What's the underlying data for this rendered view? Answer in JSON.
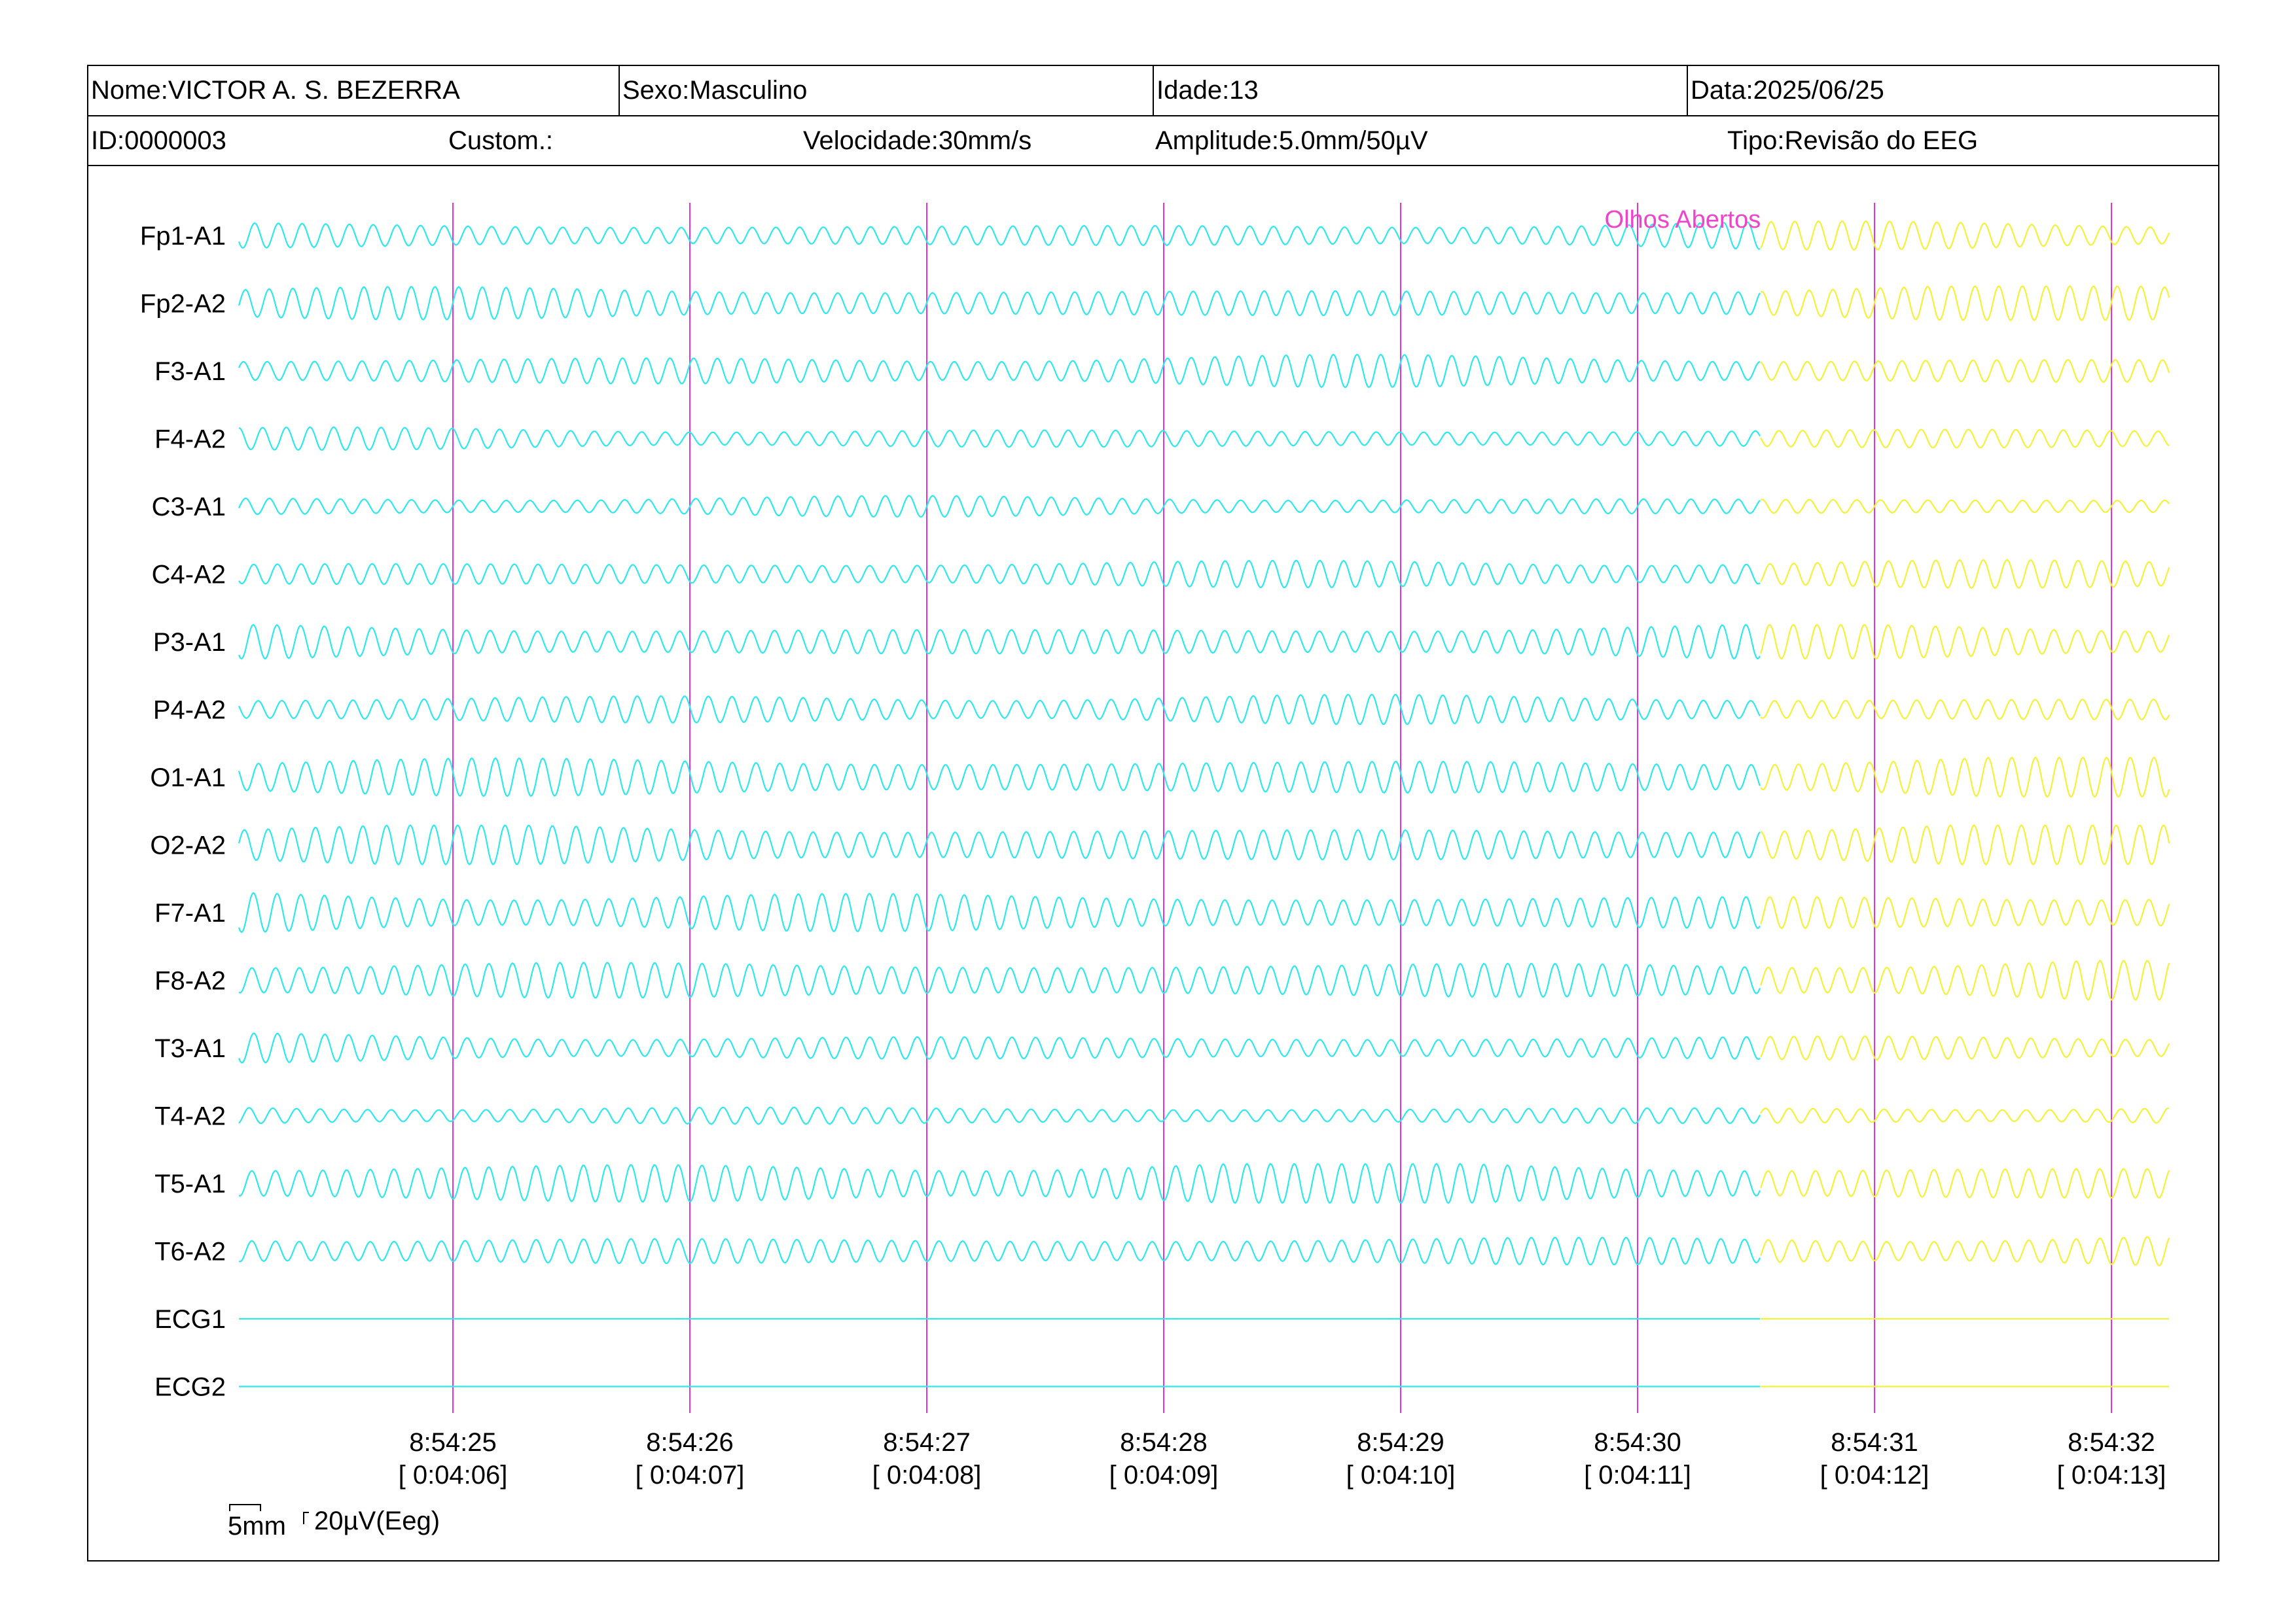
{
  "header": {
    "name": "Nome:VICTOR A. S. BEZERRA",
    "sex": "Sexo:Masculino",
    "age": "Idade:13",
    "date": "Data:2025/06/25",
    "id": "ID:0000003",
    "custom": "Custom.:",
    "speed": "Velocidade:30mm/s",
    "amplitude": "Amplitude:5.0mm/50µV",
    "type": "Tipo:Revisão do EEG"
  },
  "colors": {
    "trace_main": "#2ee8ee",
    "trace_recent": "#f2f23a",
    "markers": "#e033d8",
    "annotation": "#ee44cc"
  },
  "chart_data": {
    "type": "line",
    "channels": [
      "Fp1-A1",
      "Fp2-A2",
      "F3-A1",
      "F4-A2",
      "C3-A1",
      "C4-A2",
      "P3-A1",
      "P4-A2",
      "O1-A1",
      "O2-A2",
      "F7-A1",
      "F8-A2",
      "T3-A1",
      "T4-A2",
      "T5-A1",
      "T6-A2",
      "ECG1",
      "ECG2"
    ],
    "flat_channels": [
      "ECG1",
      "ECG2"
    ],
    "time_markers": [
      {
        "clock": "8:54:25",
        "elapsed": "[ 0:04:06]"
      },
      {
        "clock": "8:54:26",
        "elapsed": "[ 0:04:07]"
      },
      {
        "clock": "8:54:27",
        "elapsed": "[ 0:04:08]"
      },
      {
        "clock": "8:54:28",
        "elapsed": "[ 0:04:09]"
      },
      {
        "clock": "8:54:29",
        "elapsed": "[ 0:04:10]"
      },
      {
        "clock": "8:54:30",
        "elapsed": "[ 0:04:11]"
      },
      {
        "clock": "8:54:31",
        "elapsed": "[ 0:04:12]"
      },
      {
        "clock": "8:54:32",
        "elapsed": "[ 0:04:13]"
      }
    ],
    "x_range_seconds": [
      -0.9,
      7.25
    ],
    "recent_segment_start_seconds": 5.52,
    "rhythm_hz": 10,
    "annotation": {
      "text": "Olhos Abertos",
      "at_seconds": 5.52
    },
    "scale_bar": {
      "time_label": "5mm",
      "amplitude_label": "20µV(Eeg)"
    }
  }
}
